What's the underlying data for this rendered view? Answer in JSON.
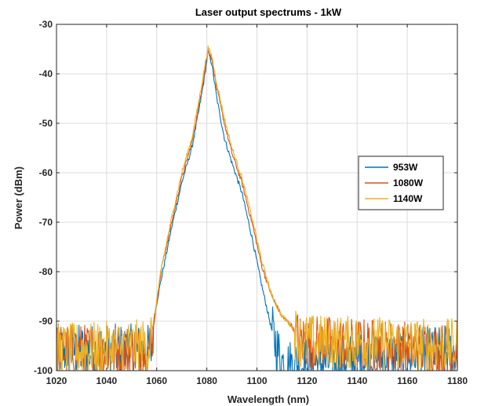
{
  "colors": {
    "background": "#ffffff",
    "grid": "#dcdcdc",
    "axis": "#262626",
    "series_953": "#0072BD",
    "series_1080": "#D95319",
    "series_1140": "#EDB120"
  },
  "chart_data": {
    "type": "line",
    "title": "Laser output spectrums - 1kW",
    "xlabel": "Wavelength (nm)",
    "ylabel": "Power (dBm)",
    "xlim": [
      1020,
      1180
    ],
    "ylim": [
      -100,
      -30
    ],
    "xticks": [
      1020,
      1040,
      1060,
      1080,
      1100,
      1120,
      1140,
      1160,
      1180
    ],
    "yticks": [
      -100,
      -90,
      -80,
      -70,
      -60,
      -50,
      -40,
      -30
    ],
    "xtick_labels": [
      "1020",
      "1040",
      "1060",
      "1080",
      "1100",
      "1120",
      "1140",
      "1160",
      "1180"
    ],
    "ytick_labels": [
      "-100",
      "-90",
      "-80",
      "-70",
      "-60",
      "-50",
      "-40",
      "-30"
    ],
    "grid": true,
    "legend_position": "right",
    "noise_floor": -100,
    "series": [
      {
        "name": "953W",
        "color": "#0072BD",
        "x": [
          1020,
          1058,
          1059,
          1062,
          1066,
          1070,
          1074,
          1077,
          1079,
          1080.5,
          1082,
          1084,
          1087,
          1090,
          1094,
          1098,
          1102,
          1106,
          1109,
          1111,
          1180
        ],
        "y": [
          -96,
          -96,
          -89,
          -81,
          -71,
          -62,
          -55,
          -47,
          -41,
          -35.5,
          -38,
          -45,
          -53,
          -58,
          -64,
          -73,
          -83,
          -92,
          -97,
          -99,
          -96
        ]
      },
      {
        "name": "1080W",
        "color": "#D95319",
        "x": [
          1020,
          1057,
          1059,
          1062,
          1066,
          1070,
          1074,
          1077,
          1079,
          1080.5,
          1082,
          1084,
          1087,
          1090,
          1094,
          1098,
          1102,
          1106,
          1110,
          1114,
          1117,
          1180
        ],
        "y": [
          -96,
          -96,
          -90,
          -79,
          -70,
          -61,
          -54,
          -46,
          -40,
          -35,
          -37,
          -43,
          -50,
          -56,
          -62,
          -70,
          -79,
          -85,
          -89,
          -91,
          -94,
          -96
        ]
      },
      {
        "name": "1140W",
        "color": "#EDB120",
        "x": [
          1020,
          1057,
          1059,
          1062,
          1066,
          1070,
          1074,
          1077,
          1079,
          1080.5,
          1082,
          1084,
          1087,
          1090,
          1094,
          1098,
          1102,
          1106,
          1110,
          1114,
          1117,
          1180
        ],
        "y": [
          -96,
          -95,
          -89,
          -79,
          -69,
          -60,
          -53,
          -45,
          -39,
          -34.8,
          -36.5,
          -42,
          -49,
          -55,
          -61,
          -69,
          -78,
          -85,
          -89,
          -91,
          -94,
          -95
        ]
      }
    ]
  }
}
